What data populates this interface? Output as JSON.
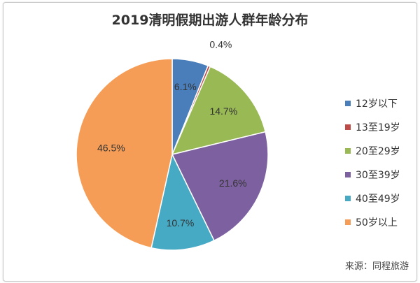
{
  "chart_data": {
    "type": "pie",
    "title": "2019清明假期出游人群年龄分布",
    "legend_position": "right",
    "slices": [
      {
        "label": "12岁以下",
        "value": 6.1,
        "value_label": "6.1%",
        "color": "#4a7ebb"
      },
      {
        "label": "13至19岁",
        "value": 0.4,
        "value_label": "0.4%",
        "color": "#be4b48"
      },
      {
        "label": "20至29岁",
        "value": 14.7,
        "value_label": "14.7%",
        "color": "#98b954"
      },
      {
        "label": "30至39岁",
        "value": 21.6,
        "value_label": "21.6%",
        "color": "#7d60a0"
      },
      {
        "label": "40至49岁",
        "value": 10.7,
        "value_label": "10.7%",
        "color": "#46aac5"
      },
      {
        "label": "50岁以上",
        "value": 46.5,
        "value_label": "46.5%",
        "color": "#f59d56"
      }
    ]
  },
  "source": "来源：同程旅游"
}
